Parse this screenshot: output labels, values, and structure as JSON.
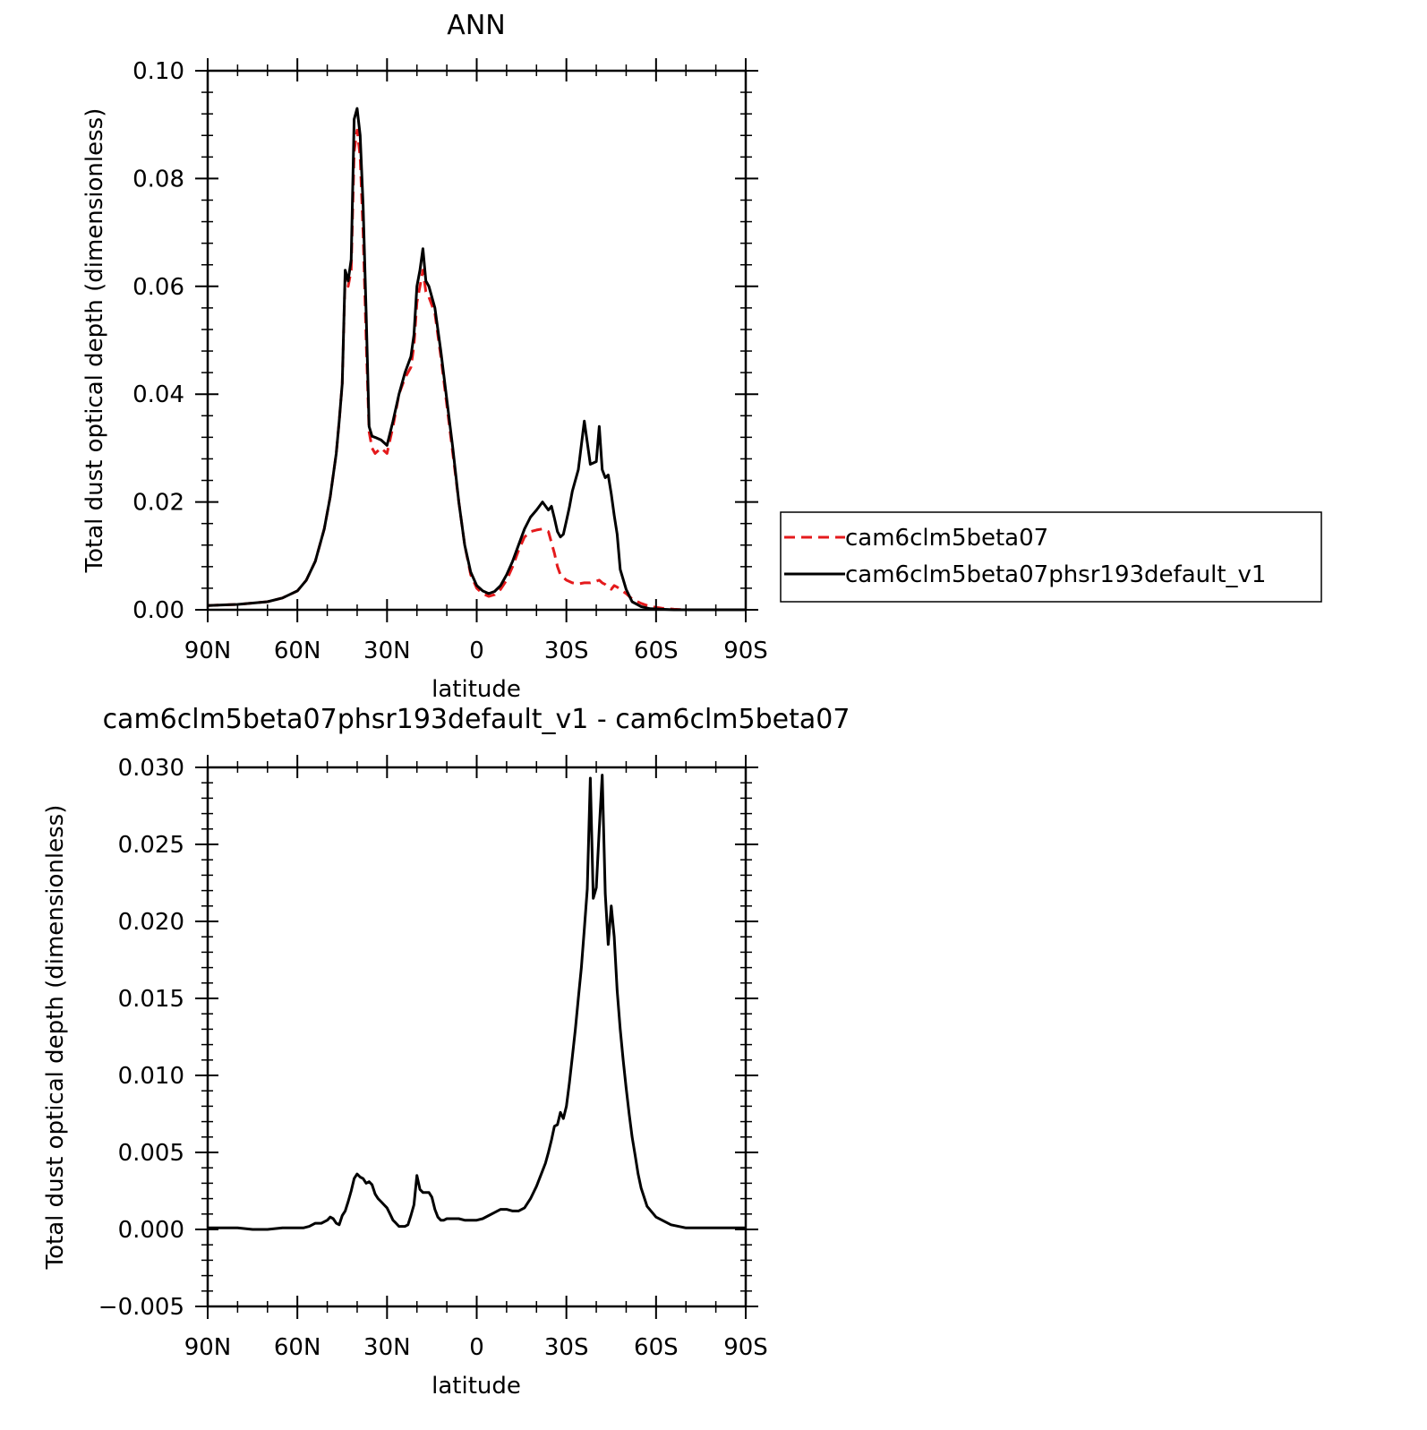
{
  "chart_data": [
    {
      "type": "line",
      "title": "ANN",
      "xlabel": "latitude",
      "ylabel": "Total dust optical depth (dimensionless)",
      "xlim": [
        90,
        -90
      ],
      "ylim": [
        0,
        0.1
      ],
      "xticks": [
        90,
        60,
        30,
        0,
        -30,
        -60,
        -90
      ],
      "xtick_labels": [
        "90N",
        "60N",
        "30N",
        "0",
        "30S",
        "60S",
        "90S"
      ],
      "yticks": [
        0,
        0.02,
        0.04,
        0.06,
        0.08,
        0.1
      ],
      "ytick_labels": [
        "0.00",
        "0.02",
        "0.04",
        "0.06",
        "0.08",
        "0.10"
      ],
      "grid": false,
      "legend": "right",
      "series": [
        {
          "name": "cam6clm5beta07",
          "color": "#e41a1c",
          "dash": "dashed",
          "x": [
            90,
            80,
            70,
            65,
            60,
            57,
            54,
            51,
            49,
            47,
            46,
            45,
            44,
            43,
            42,
            41,
            40,
            39,
            38,
            37,
            36,
            35,
            34,
            32,
            30,
            28,
            26,
            24,
            22,
            21,
            20,
            19,
            18,
            17,
            16,
            14,
            12,
            10,
            8,
            6,
            4,
            2,
            0,
            -2,
            -4,
            -6,
            -8,
            -10,
            -12,
            -14,
            -16,
            -18,
            -20,
            -22,
            -24,
            -26,
            -27,
            -28,
            -30,
            -32,
            -34,
            -36,
            -38,
            -40,
            -41,
            -42,
            -43,
            -44,
            -45,
            -46,
            -47,
            -48,
            -50,
            -52,
            -55,
            -58,
            -62,
            -66,
            -70,
            -75,
            -80,
            -85,
            -90
          ],
          "y": [
            0.0008,
            0.001,
            0.0015,
            0.0022,
            0.0035,
            0.0055,
            0.009,
            0.015,
            0.021,
            0.029,
            0.035,
            0.042,
            0.062,
            0.06,
            0.063,
            0.085,
            0.089,
            0.084,
            0.07,
            0.05,
            0.033,
            0.03,
            0.029,
            0.03,
            0.029,
            0.034,
            0.04,
            0.043,
            0.045,
            0.049,
            0.057,
            0.06,
            0.063,
            0.059,
            0.058,
            0.055,
            0.047,
            0.038,
            0.029,
            0.02,
            0.012,
            0.0065,
            0.004,
            0.003,
            0.0025,
            0.0028,
            0.0038,
            0.0055,
            0.008,
            0.011,
            0.0135,
            0.0145,
            0.0148,
            0.015,
            0.0145,
            0.0105,
            0.008,
            0.0065,
            0.0055,
            0.005,
            0.0048,
            0.005,
            0.005,
            0.0053,
            0.0055,
            0.005,
            0.0047,
            0.0042,
            0.0038,
            0.0045,
            0.0042,
            0.0038,
            0.003,
            0.002,
            0.0012,
            0.0006,
            0.0003,
            0.0001,
            0.0,
            0.0,
            0.0,
            0.0,
            0.0
          ]
        },
        {
          "name": "cam6clm5beta07phsr193default_v1",
          "color": "#000000",
          "dash": "solid",
          "x": [
            90,
            80,
            70,
            65,
            60,
            57,
            54,
            51,
            49,
            47,
            46,
            45,
            44,
            43,
            42,
            41,
            40,
            39,
            38,
            37,
            36,
            35,
            34,
            32,
            30,
            28,
            26,
            24,
            22,
            21,
            20,
            19,
            18,
            17,
            16,
            14,
            12,
            10,
            8,
            6,
            4,
            2,
            0,
            -2,
            -4,
            -6,
            -8,
            -10,
            -12,
            -14,
            -16,
            -18,
            -20,
            -22,
            -24,
            -25,
            -26,
            -27,
            -28,
            -29,
            -30,
            -31,
            -32,
            -34,
            -36,
            -38,
            -40,
            -41,
            -42,
            -43,
            -44,
            -45,
            -46,
            -47,
            -48,
            -50,
            -52,
            -55,
            -58,
            -62,
            -66,
            -70,
            -75,
            -80,
            -85,
            -90
          ],
          "y": [
            0.0008,
            0.001,
            0.0015,
            0.0022,
            0.0035,
            0.0055,
            0.009,
            0.015,
            0.021,
            0.029,
            0.035,
            0.042,
            0.063,
            0.061,
            0.065,
            0.091,
            0.093,
            0.088,
            0.075,
            0.055,
            0.034,
            0.0322,
            0.032,
            0.0315,
            0.0305,
            0.035,
            0.04,
            0.044,
            0.047,
            0.051,
            0.06,
            0.063,
            0.067,
            0.061,
            0.06,
            0.056,
            0.048,
            0.039,
            0.03,
            0.02,
            0.012,
            0.007,
            0.0045,
            0.0035,
            0.003,
            0.0034,
            0.0045,
            0.0065,
            0.009,
            0.012,
            0.015,
            0.0172,
            0.0185,
            0.02,
            0.0185,
            0.0192,
            0.017,
            0.0145,
            0.0135,
            0.014,
            0.0165,
            0.019,
            0.022,
            0.026,
            0.035,
            0.027,
            0.0275,
            0.034,
            0.026,
            0.0245,
            0.025,
            0.0215,
            0.0175,
            0.014,
            0.0075,
            0.0038,
            0.0015,
            0.0006,
            0.0002,
            0.0001,
            0.0,
            0.0,
            0.0,
            0.0,
            0.0,
            0.0
          ]
        }
      ]
    },
    {
      "type": "line",
      "title": "cam6clm5beta07phsr193default_v1 - cam6clm5beta07",
      "xlabel": "latitude",
      "ylabel": "Total dust optical depth (dimensionless)",
      "xlim": [
        90,
        -90
      ],
      "ylim": [
        -0.005,
        0.03
      ],
      "xticks": [
        90,
        60,
        30,
        0,
        -30,
        -60,
        -90
      ],
      "xtick_labels": [
        "90N",
        "60N",
        "30N",
        "0",
        "30S",
        "60S",
        "90S"
      ],
      "yticks": [
        -0.005,
        0,
        0.005,
        0.01,
        0.015,
        0.02,
        0.025,
        0.03
      ],
      "ytick_labels": [
        "−0.005",
        "0.000",
        "0.005",
        "0.010",
        "0.015",
        "0.020",
        "0.025",
        "0.030"
      ],
      "grid": false,
      "series": [
        {
          "color": "#000000",
          "dash": "solid",
          "x": [
            90,
            85,
            80,
            75,
            70,
            65,
            60,
            58,
            56,
            54,
            52,
            50,
            49,
            48,
            47,
            46,
            45,
            44,
            43,
            42,
            41,
            40,
            39,
            38,
            37,
            36,
            35,
            34,
            33,
            32,
            31,
            30,
            29,
            28,
            27,
            26,
            25,
            24,
            23,
            22,
            21,
            20,
            19,
            18,
            17,
            16,
            15,
            14,
            13,
            12,
            11,
            10,
            9,
            8,
            6,
            4,
            2,
            0,
            -2,
            -4,
            -6,
            -8,
            -10,
            -12,
            -14,
            -16,
            -18,
            -20,
            -22,
            -23,
            -24,
            -25,
            -26,
            -27,
            -28,
            -29,
            -30,
            -31,
            -32,
            -33,
            -34,
            -35,
            -36,
            -37,
            -38,
            -39,
            -40,
            -41,
            -42,
            -43,
            -44,
            -45,
            -46,
            -47,
            -48,
            -49,
            -50,
            -51,
            -52,
            -53,
            -54,
            -55,
            -57,
            -60,
            -65,
            -70,
            -75,
            -80,
            -85,
            -90
          ],
          "y": [
            0.0001,
            0.0001,
            0.0001,
            0.0,
            0.0,
            0.0001,
            0.0001,
            0.0001,
            0.0002,
            0.0004,
            0.0004,
            0.0006,
            0.0008,
            0.0007,
            0.0004,
            0.0003,
            0.0009,
            0.0012,
            0.0018,
            0.0025,
            0.0033,
            0.0036,
            0.0034,
            0.0033,
            0.003,
            0.0031,
            0.0029,
            0.0023,
            0.002,
            0.0018,
            0.0016,
            0.0014,
            0.001,
            0.0006,
            0.0004,
            0.0002,
            0.0002,
            0.0002,
            0.0003,
            0.0009,
            0.0016,
            0.0035,
            0.0026,
            0.0024,
            0.0024,
            0.0024,
            0.0021,
            0.0013,
            0.0008,
            0.0006,
            0.0006,
            0.0007,
            0.0007,
            0.0007,
            0.0007,
            0.0006,
            0.0006,
            0.0006,
            0.0007,
            0.0009,
            0.0011,
            0.0013,
            0.0013,
            0.0012,
            0.0012,
            0.0014,
            0.002,
            0.0028,
            0.0038,
            0.0043,
            0.005,
            0.0058,
            0.0067,
            0.0068,
            0.0076,
            0.0072,
            0.008,
            0.0095,
            0.0112,
            0.013,
            0.015,
            0.017,
            0.0195,
            0.0221,
            0.0293,
            0.0215,
            0.0222,
            0.026,
            0.0295,
            0.0218,
            0.0185,
            0.021,
            0.019,
            0.0155,
            0.013,
            0.011,
            0.0092,
            0.0075,
            0.006,
            0.0048,
            0.0036,
            0.0027,
            0.0015,
            0.0008,
            0.0003,
            0.0001,
            0.0001,
            0.0001,
            0.0001,
            0.0001
          ]
        }
      ]
    }
  ]
}
